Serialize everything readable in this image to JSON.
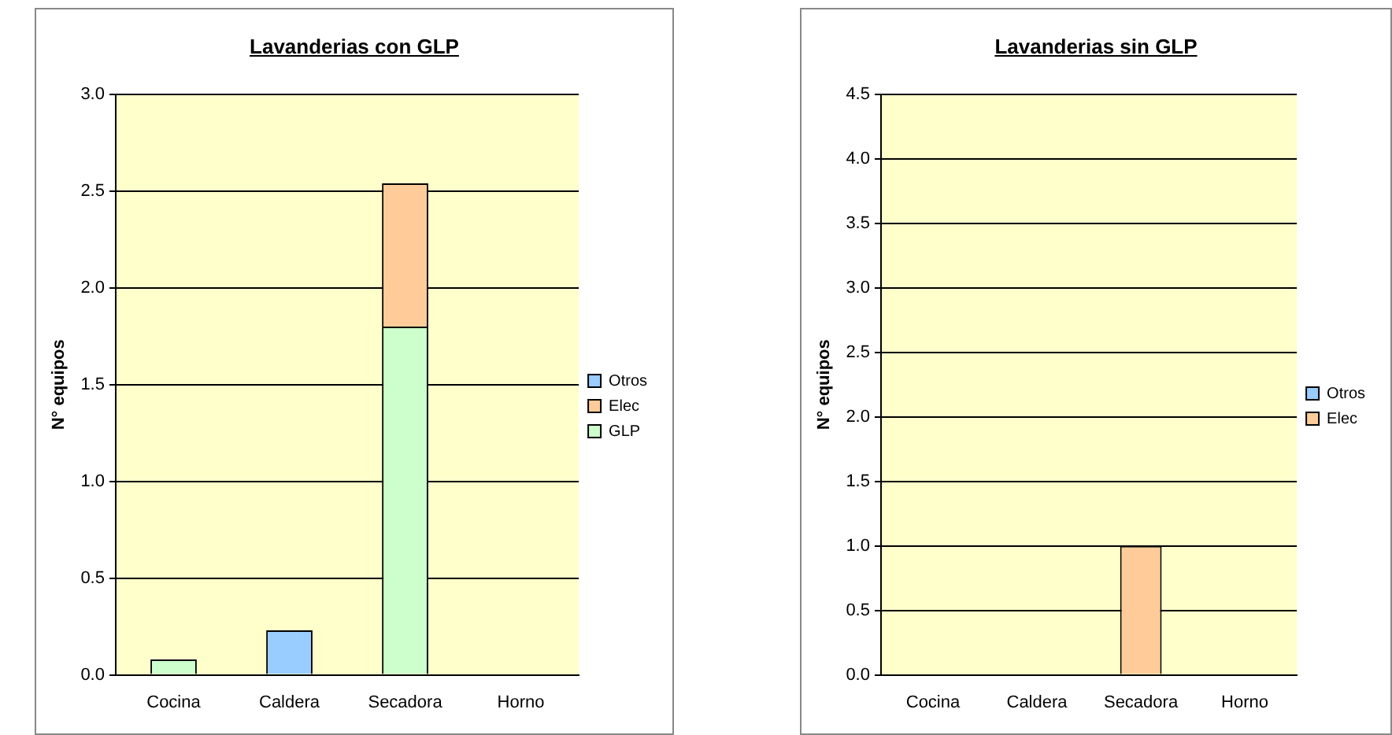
{
  "chart_data": [
    {
      "type": "bar",
      "title": "Lavanderias con GLP",
      "ylabel": "N° equipos",
      "categories": [
        "Cocina",
        "Caldera",
        "Secadora",
        "Horno"
      ],
      "stacked": true,
      "legend": "right",
      "grid": "y",
      "ylim": [
        0,
        3
      ],
      "yticks": [
        {
          "value": 0,
          "label": "0.0"
        },
        0.5,
        {
          "value": 1,
          "label": "1.0"
        },
        1.5,
        {
          "value": 2,
          "label": "2.0"
        },
        2.5,
        {
          "value": 3,
          "label": "3.0"
        }
      ],
      "series": [
        {
          "name": "GLP",
          "color": "#ccffcc",
          "values": [
            0.08,
            null,
            1.8,
            null
          ]
        },
        {
          "name": "Elec",
          "color": "#ffcc99",
          "values": [
            null,
            null,
            0.74,
            null
          ]
        },
        {
          "name": "Otros",
          "color": "#99ccff",
          "values": [
            null,
            0.23,
            null,
            null
          ]
        }
      ]
    },
    {
      "type": "bar",
      "title": "Lavanderias sin GLP",
      "ylabel": "N° equipos",
      "categories": [
        "Cocina",
        "Caldera",
        "Secadora",
        "Horno"
      ],
      "stacked": true,
      "legend": "right",
      "grid": "y",
      "ylim": [
        0,
        4.5
      ],
      "yticks": [
        {
          "value": 0,
          "label": "0.0"
        },
        0.5,
        {
          "value": 1,
          "label": "1.0"
        },
        1.5,
        {
          "value": 2,
          "label": "2.0"
        },
        2.5,
        {
          "value": 3,
          "label": "3.0"
        },
        3.5,
        {
          "value": 4,
          "label": "4.0"
        },
        4.5
      ],
      "series": [
        {
          "name": "Elec",
          "color": "#ffcc99",
          "values": [
            null,
            null,
            1.0,
            null
          ]
        },
        {
          "name": "Otros",
          "color": "#99ccff",
          "values": [
            null,
            null,
            null,
            null
          ]
        }
      ]
    }
  ]
}
